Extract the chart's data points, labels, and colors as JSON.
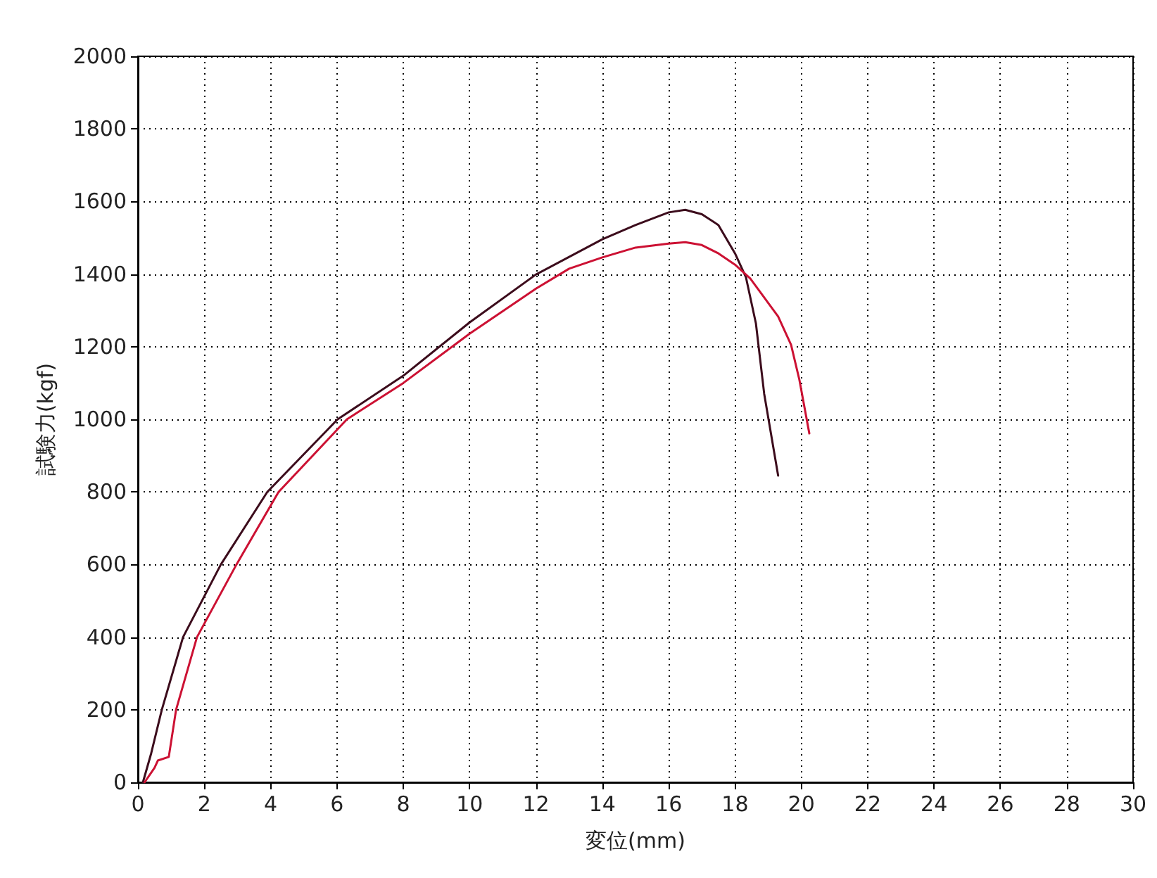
{
  "chart_data": {
    "type": "line",
    "xlabel": "変位(mm)",
    "ylabel": "試験力(kgf)",
    "xlim": [
      0,
      30
    ],
    "xticks": [
      0,
      2,
      4,
      6,
      8,
      10,
      12,
      14,
      16,
      18,
      20,
      22,
      24,
      26,
      28,
      30
    ],
    "ylim": [
      0,
      2000
    ],
    "yticks": [
      0,
      200,
      400,
      600,
      800,
      1000,
      1200,
      1400,
      1600,
      1800,
      2000
    ],
    "grid": true,
    "marker": "none",
    "line_style": "solid",
    "series": [
      {
        "color": "#3c0c1c",
        "x": [
          0.15,
          0.4,
          0.72,
          1.36,
          2.5,
          3.9,
          6.02,
          8,
          10,
          12,
          14,
          15,
          16,
          16.5,
          17,
          17.5,
          18,
          18.33,
          18.63,
          18.88,
          19.3
        ],
        "values": [
          0,
          80,
          200,
          400,
          600,
          800,
          1000,
          1120,
          1267,
          1399,
          1496,
          1535,
          1570,
          1577,
          1565,
          1535,
          1457,
          1391,
          1264,
          1070,
          845
        ]
      },
      {
        "color": "#cc1133",
        "x": [
          0.2,
          0.5,
          0.6,
          0.93,
          1.15,
          1.78,
          2.97,
          4.24,
          6.3,
          8,
          10,
          12,
          13,
          14,
          15,
          16,
          16.5,
          17,
          17.5,
          18,
          18.46,
          19.3,
          19.69,
          19.94,
          20.24
        ],
        "values": [
          0,
          40,
          60,
          70,
          200,
          400,
          600,
          800,
          1000,
          1100,
          1236,
          1360,
          1415,
          1446,
          1473,
          1484,
          1488,
          1480,
          1457,
          1426,
          1388,
          1283,
          1205,
          1109,
          961
        ]
      }
    ]
  }
}
